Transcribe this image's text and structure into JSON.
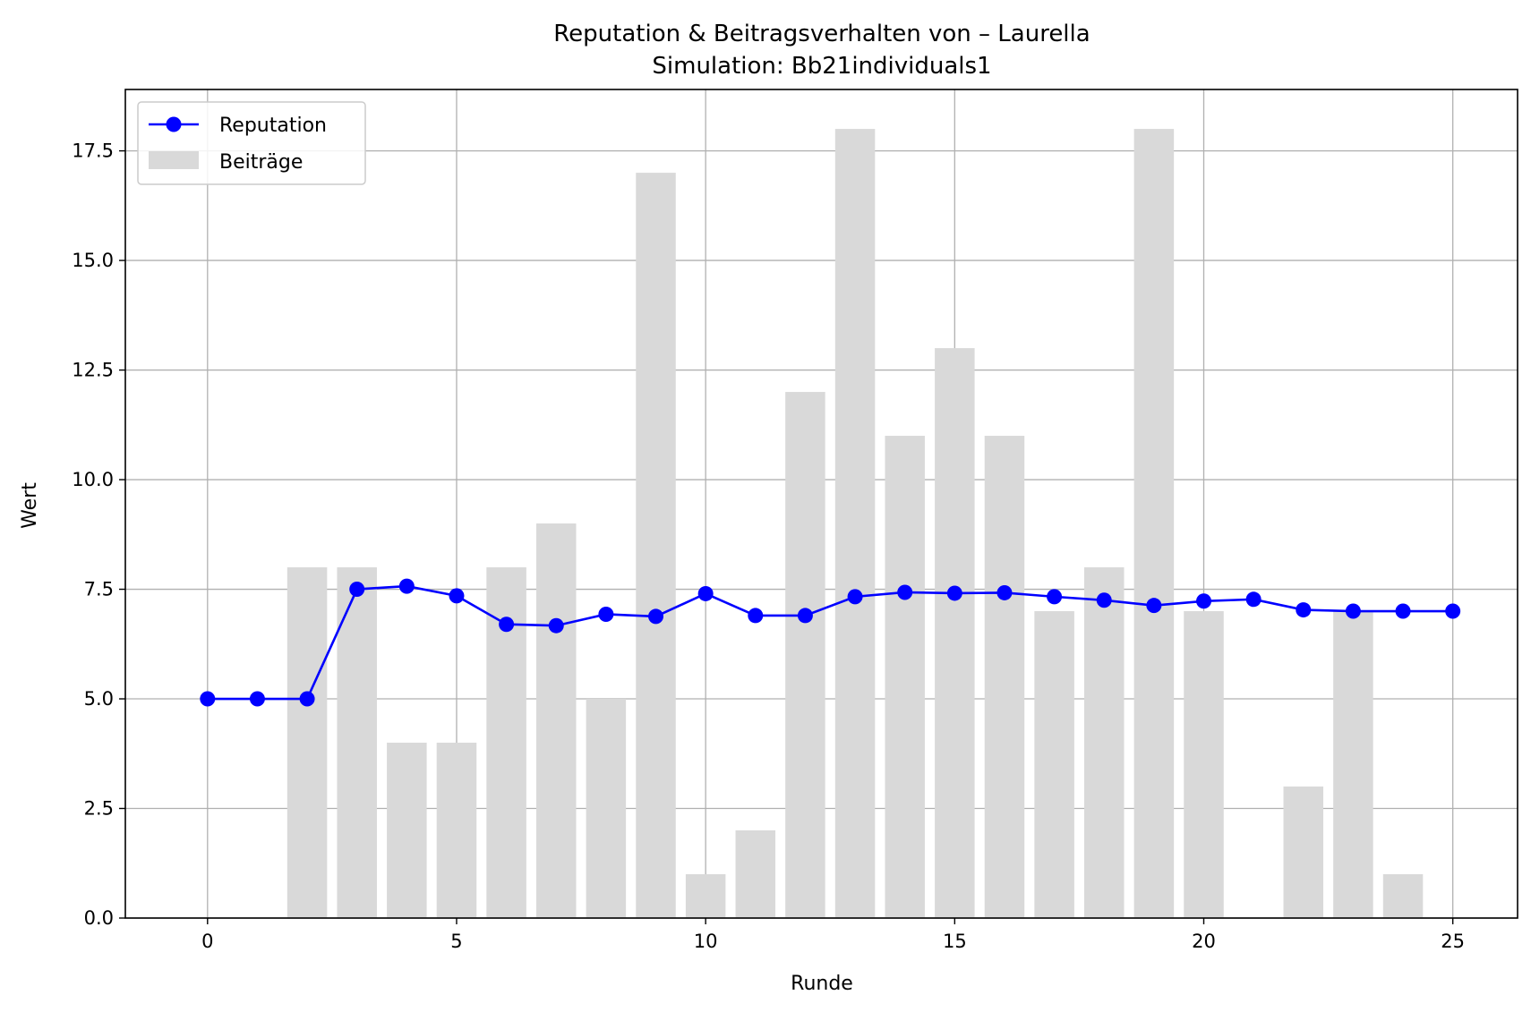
{
  "chart_data": {
    "type": "bar",
    "title": "Reputation & Beitragsverhalten von – Laurella",
    "subtitle": "Simulation: Bb21individuals1",
    "xlabel": "Runde",
    "ylabel": "Wert",
    "xlim": [
      -1.65,
      26.3
    ],
    "ylim": [
      0,
      18.9
    ],
    "xticks": [
      0,
      5,
      10,
      15,
      20,
      25
    ],
    "xtick_labels": [
      "0",
      "5",
      "10",
      "15",
      "20",
      "25"
    ],
    "yticks": [
      0,
      2.5,
      5,
      7.5,
      10,
      12.5,
      15,
      17.5
    ],
    "ytick_labels": [
      "0.0",
      "2.5",
      "5.0",
      "7.5",
      "10.0",
      "12.5",
      "15.0",
      "17.5"
    ],
    "grid": true,
    "legend_position": "top-left",
    "x": [
      0,
      1,
      2,
      3,
      4,
      5,
      6,
      7,
      8,
      9,
      10,
      11,
      12,
      13,
      14,
      15,
      16,
      17,
      18,
      19,
      20,
      21,
      22,
      23,
      24,
      25
    ],
    "series": [
      {
        "name": "Beiträge",
        "kind": "bar",
        "color": "#d9d9d9",
        "values": [
          0,
          0,
          8,
          8,
          4,
          4,
          8,
          9,
          5,
          17,
          1,
          2,
          12,
          18,
          11,
          13,
          11,
          7,
          8,
          18,
          7,
          0,
          3,
          7,
          1,
          0
        ]
      },
      {
        "name": "Reputation",
        "kind": "line",
        "marker": "circle",
        "color": "#0000ff",
        "values": [
          5.0,
          5.0,
          5.0,
          7.5,
          7.57,
          7.35,
          6.7,
          6.67,
          6.93,
          6.88,
          7.4,
          6.9,
          6.9,
          7.33,
          7.43,
          7.41,
          7.42,
          7.33,
          7.25,
          7.13,
          7.23,
          7.27,
          7.03,
          7.0,
          7.0,
          7.0
        ]
      }
    ]
  }
}
